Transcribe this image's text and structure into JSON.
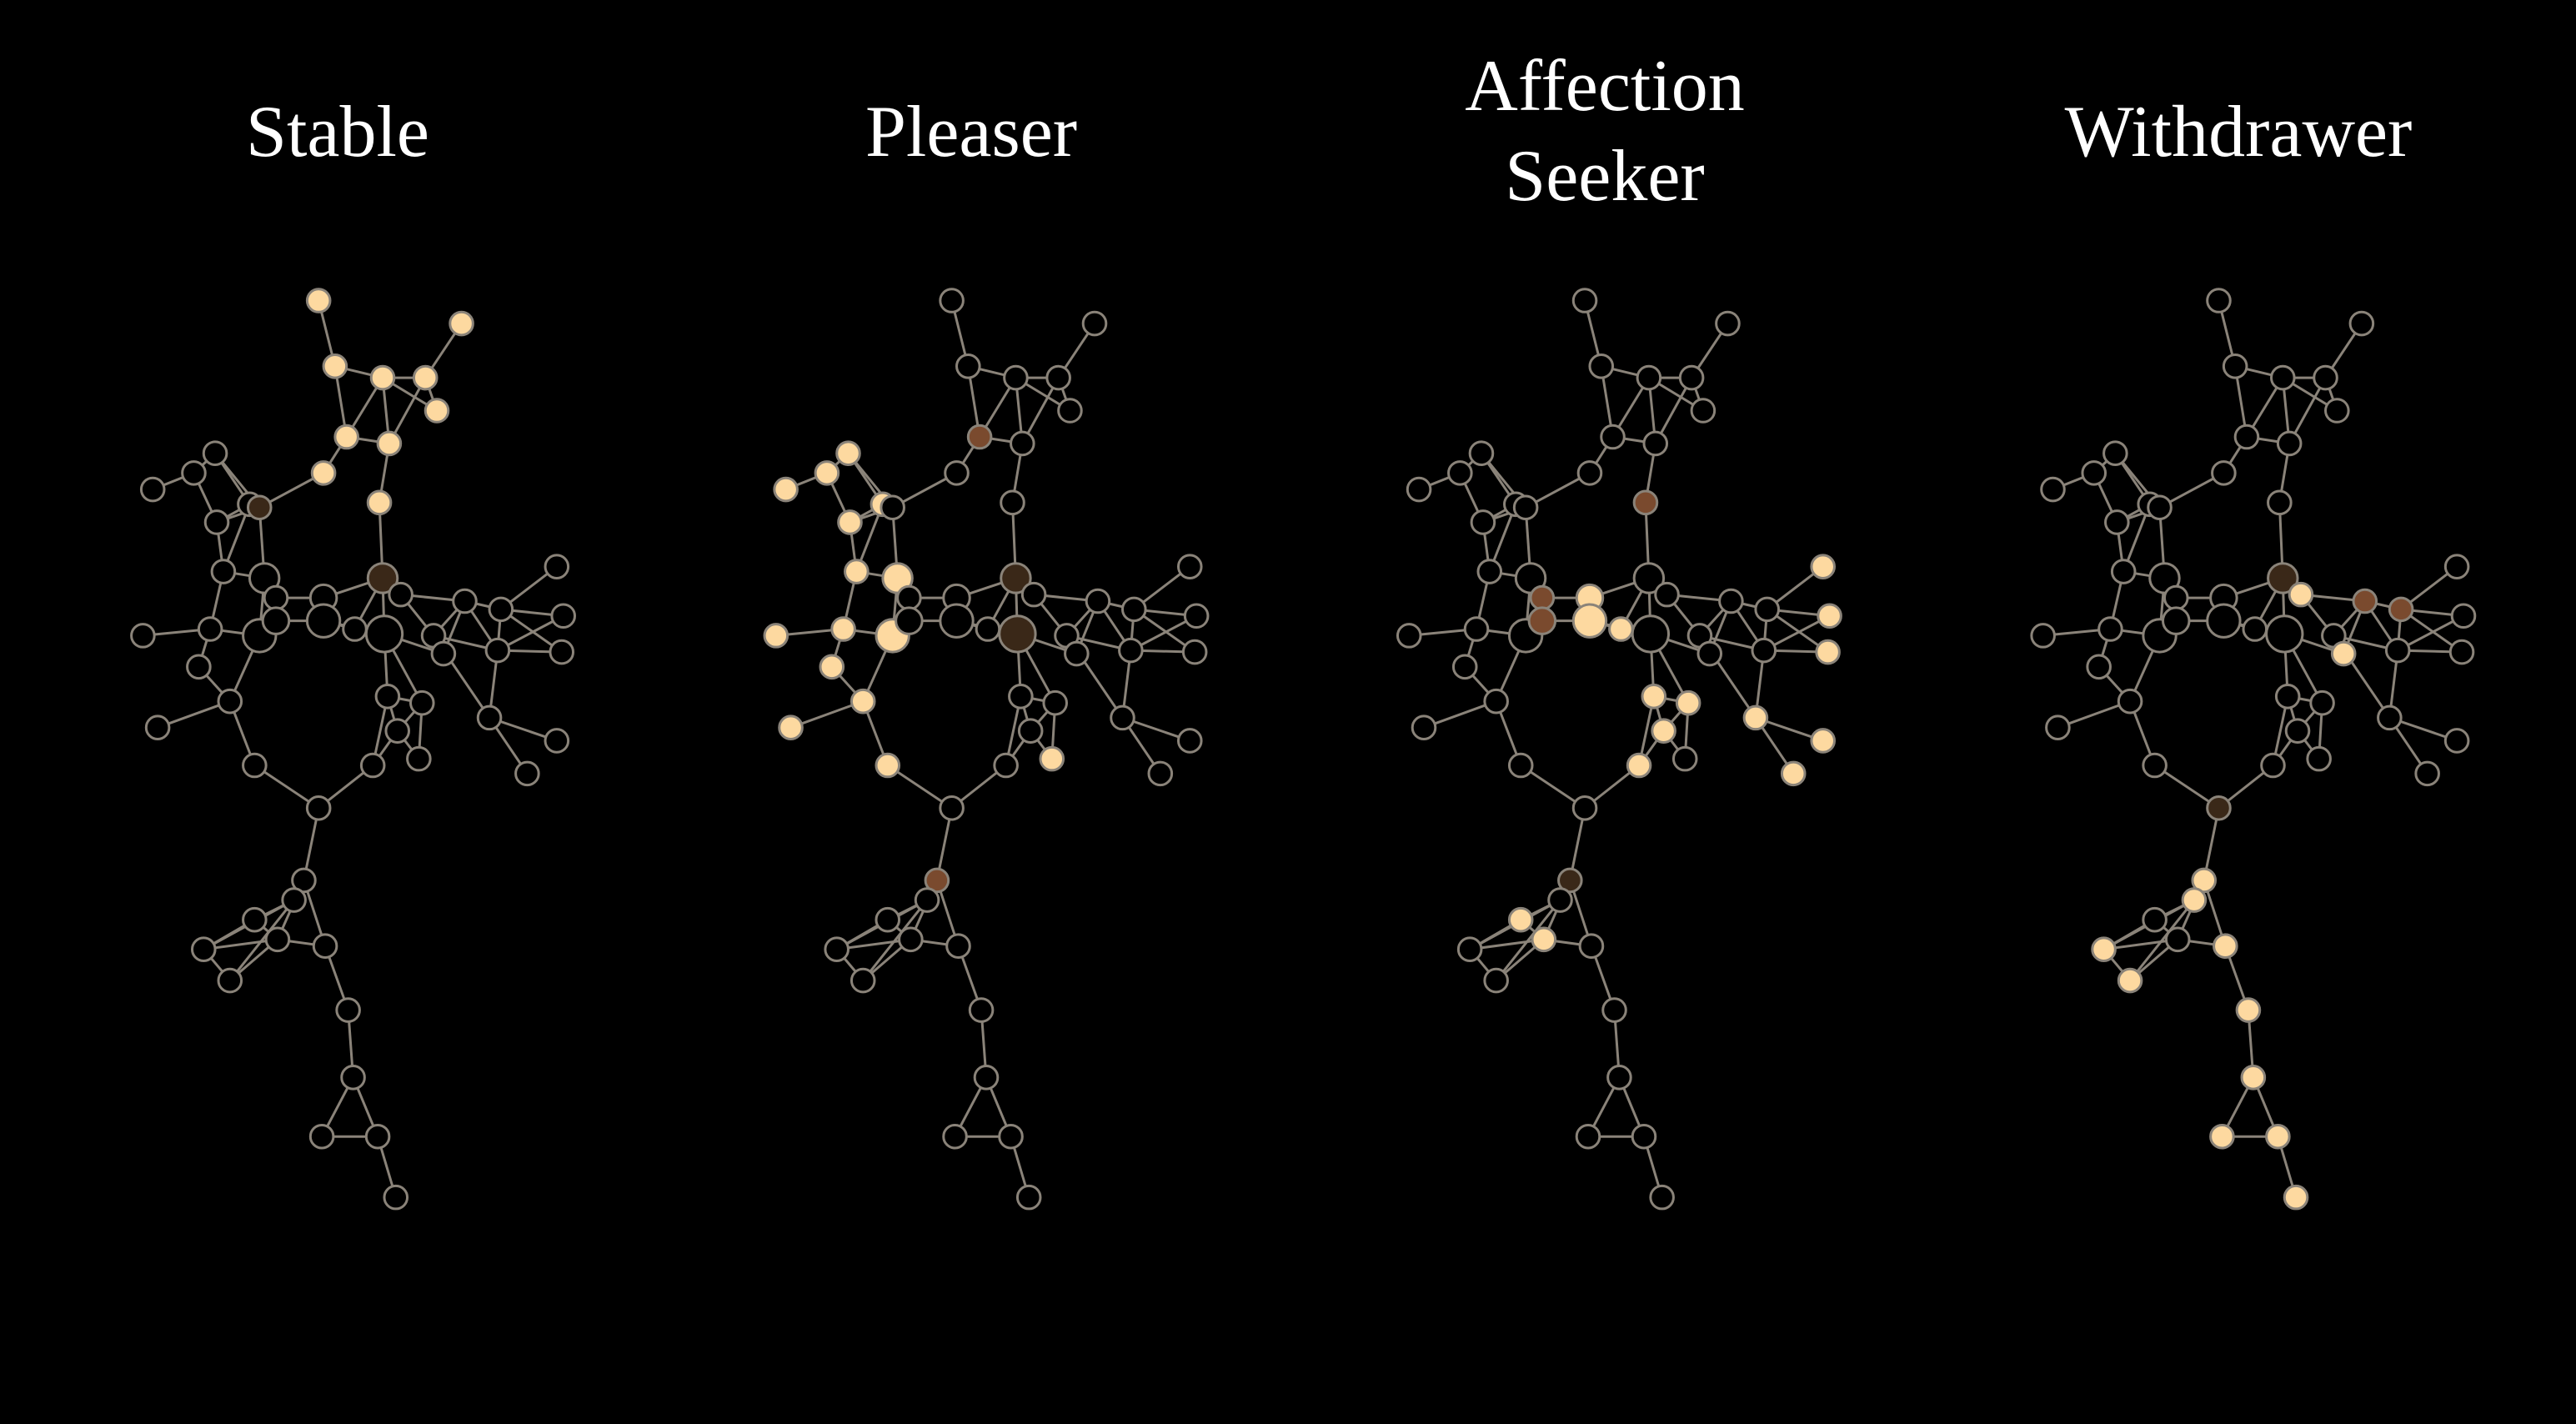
{
  "colors": {
    "background": "#000000",
    "title": "#ffffff",
    "edge": "#8a8379",
    "inactive_fill": "#000000",
    "active_fill": "#fdd9a0",
    "medium_fill": "#7a4a2e",
    "dark_fill": "#3a2818"
  },
  "panels": [
    {
      "id": "stable",
      "title_lines": [
        "Stable"
      ],
      "active": [
        "n17",
        "n16",
        "n18",
        "n19",
        "n20",
        "n21",
        "n22",
        "n23",
        "n24",
        "n25"
      ],
      "medium": [],
      "dark": [
        "n12",
        "n26"
      ]
    },
    {
      "id": "pleaser",
      "title_lines": [
        "Pleaser"
      ],
      "active": [
        "n1",
        "n2",
        "n3",
        "n4",
        "n5",
        "n6",
        "n7",
        "n8",
        "n9",
        "n10",
        "n11",
        "n13",
        "n14",
        "n15",
        "n35"
      ],
      "medium": [
        "n23",
        "n42"
      ],
      "dark": [
        "n26",
        "n28"
      ]
    },
    {
      "id": "affection-seeker",
      "title_lines": [
        "Affection",
        "Seeker"
      ],
      "active": [
        "n27",
        "n29",
        "n30",
        "n31",
        "n32",
        "n33",
        "n34",
        "n44",
        "n45",
        "n46",
        "n47",
        "n48",
        "n49",
        "n50",
        "n51"
      ],
      "medium": [
        "n36",
        "n37",
        "n25"
      ],
      "dark": [
        "n42"
      ]
    },
    {
      "id": "withdrawer",
      "title_lines": [
        "Withdrawer"
      ],
      "active": [
        "n42",
        "n52",
        "n53",
        "n54",
        "n55",
        "n56",
        "n57",
        "n58",
        "n59",
        "n60",
        "n61",
        "n62"
      ],
      "medium": [
        "n40",
        "n41"
      ],
      "dark": [
        "n38",
        "n26"
      ]
    }
  ]
}
